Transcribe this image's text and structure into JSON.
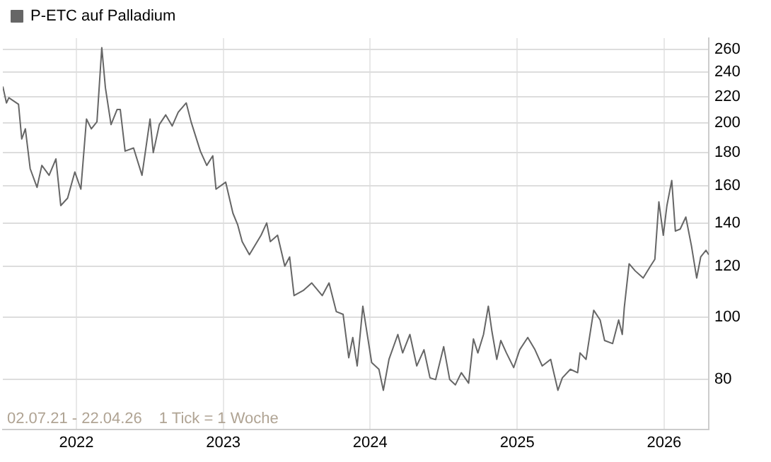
{
  "chart_data": {
    "type": "line",
    "log": "y",
    "grid": true,
    "legend": "top left",
    "marker": "none",
    "line_style": "solid",
    "annotations": [
      "02.07.21 - 22.04.26",
      "1 Tick = 1 Woche"
    ],
    "xlim": [
      "2021-07-02",
      "2026-04-22"
    ],
    "xticks": [
      "2022",
      "2023",
      "2024",
      "2025",
      "2026"
    ],
    "ylim": [
      67,
      271
    ],
    "yticks": [
      80,
      100,
      120,
      140,
      160,
      180,
      200,
      220,
      240,
      260
    ],
    "x": [
      "2021-07-02",
      "2021-07-11",
      "2021-07-17",
      "2021-08-10",
      "2021-08-18",
      "2021-08-27",
      "2021-09-08",
      "2021-09-25",
      "2021-10-07",
      "2021-10-25",
      "2021-11-11",
      "2021-11-23",
      "2021-12-10",
      "2021-12-28",
      "2022-01-12",
      "2022-01-26",
      "2022-02-07",
      "2022-02-21",
      "2022-03-05",
      "2022-03-14",
      "2022-03-28",
      "2022-04-12",
      "2022-04-20",
      "2022-05-02",
      "2022-05-23",
      "2022-06-13",
      "2022-07-03",
      "2022-07-11",
      "2022-07-26",
      "2022-08-11",
      "2022-08-27",
      "2022-09-11",
      "2022-10-01",
      "2022-10-13",
      "2022-11-05",
      "2022-11-21",
      "2022-12-06",
      "2022-12-14",
      "2023-01-07",
      "2023-01-25",
      "2023-02-06",
      "2023-02-17",
      "2023-03-07",
      "2023-04-05",
      "2023-04-19",
      "2023-04-28",
      "2023-05-16",
      "2023-06-03",
      "2023-06-15",
      "2023-06-26",
      "2023-07-19",
      "2023-08-09",
      "2023-09-04",
      "2023-09-21",
      "2023-10-09",
      "2023-10-26",
      "2023-11-09",
      "2023-11-19",
      "2023-11-30",
      "2023-12-14",
      "2024-01-05",
      "2024-01-23",
      "2024-02-03",
      "2024-02-17",
      "2024-03-10",
      "2024-03-22",
      "2024-04-09",
      "2024-04-26",
      "2024-05-14",
      "2024-05-29",
      "2024-06-12",
      "2024-07-02",
      "2024-07-17",
      "2024-07-31",
      "2024-08-15",
      "2024-09-02",
      "2024-09-14",
      "2024-09-25",
      "2024-10-09",
      "2024-10-21",
      "2024-10-30",
      "2024-11-11",
      "2024-11-21",
      "2024-12-05",
      "2024-12-23",
      "2025-01-07",
      "2025-01-27",
      "2025-02-14",
      "2025-03-04",
      "2025-03-25",
      "2025-04-12",
      "2025-04-23",
      "2025-05-13",
      "2025-05-31",
      "2025-06-06",
      "2025-06-21",
      "2025-07-10",
      "2025-07-26",
      "2025-08-06",
      "2025-08-26",
      "2025-09-10",
      "2025-09-19",
      "2025-09-24",
      "2025-10-06",
      "2025-10-21",
      "2025-11-10",
      "2025-11-28",
      "2025-12-09",
      "2025-12-19",
      "2025-12-30",
      "2026-01-08",
      "2026-01-20",
      "2026-01-29",
      "2026-02-10",
      "2026-02-24",
      "2026-03-10",
      "2026-03-23",
      "2026-04-02",
      "2026-04-15",
      "2026-04-22"
    ],
    "series": [
      {
        "name": "P-ETC auf Palladium",
        "color": "#666666",
        "values": [
          228,
          215,
          219,
          214,
          189,
          196,
          170,
          159,
          172,
          166,
          176,
          149,
          153,
          168,
          158,
          203,
          196,
          201,
          262,
          227,
          199,
          210,
          210,
          181,
          183,
          166,
          203,
          180,
          199,
          206,
          198,
          208,
          215,
          201,
          181,
          172,
          178,
          158,
          162,
          145,
          139,
          131,
          125,
          134,
          140,
          131,
          134,
          120,
          124,
          108,
          110,
          113,
          108,
          113,
          102,
          101,
          86.5,
          93,
          84,
          104,
          85,
          83,
          77,
          86,
          94,
          88,
          94,
          84,
          89,
          80.5,
          80,
          90,
          80,
          78.5,
          82,
          79,
          92.5,
          88,
          94,
          104,
          95,
          86,
          92,
          88,
          83.5,
          89,
          93,
          89,
          84,
          86,
          77,
          80.5,
          83,
          82,
          88,
          86,
          102.5,
          99,
          92,
          91,
          99,
          94,
          103.5,
          121,
          118,
          115,
          120,
          123,
          151,
          134,
          149,
          163,
          136,
          137,
          143,
          129,
          115,
          124,
          127,
          125
        ]
      }
    ]
  }
}
